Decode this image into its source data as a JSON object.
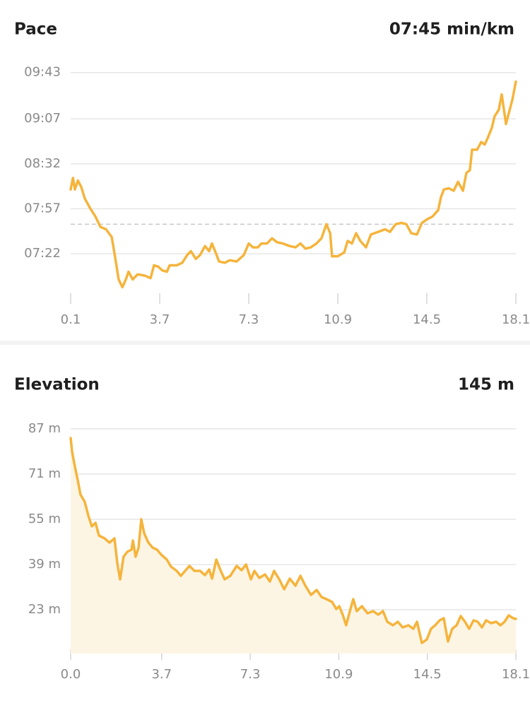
{
  "chart_data": [
    {
      "type": "line",
      "title": "Pace",
      "summary": "07:45 min/km",
      "color": "#f5b43c",
      "x": [
        0.1,
        0.19,
        0.27,
        0.39,
        0.53,
        0.67,
        0.9,
        1.1,
        1.3,
        1.53,
        1.76,
        1.9,
        2.04,
        2.19,
        2.33,
        2.44,
        2.61,
        2.81,
        3.1,
        3.33,
        3.47,
        3.64,
        3.81,
        3.99,
        4.1,
        4.39,
        4.61,
        4.81,
        4.96,
        5.16,
        5.33,
        5.53,
        5.7,
        5.81,
        5.96,
        6.1,
        6.33,
        6.53,
        6.81,
        7.1,
        7.3,
        7.47,
        7.67,
        7.81,
        8.04,
        8.24,
        8.44,
        8.67,
        8.96,
        9.19,
        9.39,
        9.59,
        9.81,
        10.04,
        10.24,
        10.44,
        10.59,
        10.67,
        10.9,
        11.16,
        11.3,
        11.47,
        11.64,
        11.81,
        12.04,
        12.24,
        12.53,
        12.81,
        13.01,
        13.24,
        13.47,
        13.67,
        13.87,
        14.1,
        14.3,
        14.53,
        14.73,
        14.96,
        15.07,
        15.19,
        15.39,
        15.59,
        15.76,
        15.96,
        16.1,
        16.24,
        16.33,
        16.53,
        16.7,
        16.84,
        16.96,
        17.13,
        17.24,
        17.41,
        17.53,
        17.7,
        17.81,
        17.96,
        18.1
      ],
      "values": [
        492,
        501,
        492,
        499,
        494,
        485,
        477,
        471,
        463,
        461,
        455,
        439,
        422,
        416,
        422,
        428,
        422,
        426,
        425,
        423,
        433,
        432,
        429,
        428,
        433,
        433,
        435,
        441,
        444,
        438,
        441,
        448,
        444,
        450,
        443,
        436,
        435,
        437,
        436,
        441,
        450,
        447,
        447,
        450,
        450,
        454,
        451,
        450,
        448,
        447,
        450,
        446,
        447,
        450,
        454,
        465,
        458,
        440,
        440,
        443,
        452,
        450,
        458,
        452,
        447,
        457,
        459,
        461,
        459,
        465,
        466,
        465,
        458,
        457,
        466,
        469,
        471,
        476,
        486,
        492,
        493,
        491,
        498,
        491,
        505,
        507,
        523,
        523,
        529,
        527,
        532,
        540,
        549,
        554,
        566,
        543,
        551,
        562,
        576
      ],
      "ylim": [
        408,
        590
      ],
      "yticks": [
        {
          "value": 442,
          "label": "07:22"
        },
        {
          "value": 477,
          "label": "07:57"
        },
        {
          "value": 512,
          "label": "08:32"
        },
        {
          "value": 547,
          "label": "09:07"
        },
        {
          "value": 583,
          "label": "09:43"
        }
      ],
      "xlim": [
        0.1,
        18.1
      ],
      "xticks": [
        0.1,
        3.7,
        7.3,
        10.9,
        14.5,
        18.1
      ],
      "average": 465,
      "grid": true,
      "area": false
    },
    {
      "type": "line",
      "title": "Elevation",
      "summary": "145 m",
      "color": "#f5b43c",
      "area_color": "#fdf5e4",
      "x": [
        0,
        0.06,
        0.17,
        0.29,
        0.4,
        0.57,
        0.72,
        0.86,
        1.01,
        1.15,
        1.38,
        1.58,
        1.78,
        1.9,
        2.01,
        2.15,
        2.3,
        2.47,
        2.53,
        2.64,
        2.76,
        2.87,
        2.99,
        3.16,
        3.33,
        3.51,
        3.68,
        3.91,
        4.08,
        4.31,
        4.48,
        4.65,
        4.83,
        5.03,
        5.26,
        5.46,
        5.63,
        5.75,
        5.92,
        6.09,
        6.26,
        6.49,
        6.75,
        6.95,
        7.13,
        7.33,
        7.47,
        7.67,
        7.9,
        8.1,
        8.27,
        8.48,
        8.68,
        8.91,
        9.14,
        9.34,
        9.54,
        9.77,
        10,
        10.2,
        10.4,
        10.63,
        10.8,
        10.92,
        11.06,
        11.2,
        11.35,
        11.49,
        11.63,
        11.84,
        12.07,
        12.3,
        12.5,
        12.7,
        12.87,
        13.1,
        13.3,
        13.5,
        13.73,
        13.93,
        14.08,
        14.28,
        14.48,
        14.65,
        14.82,
        15,
        15.17,
        15.34,
        15.51,
        15.69,
        15.86,
        16.03,
        16.2,
        16.38,
        16.55,
        16.72,
        16.89,
        17.09,
        17.3,
        17.47,
        17.64,
        17.81,
        17.99,
        18.1
      ],
      "values": [
        83.75,
        78.75,
        73.75,
        68.75,
        63.75,
        61.25,
        56.25,
        52.5,
        53.75,
        49.25,
        48.25,
        46.75,
        48.25,
        39.25,
        33.75,
        41.75,
        43.5,
        44.25,
        47.5,
        41.75,
        45,
        55,
        50,
        46.75,
        45,
        44.25,
        42.5,
        40.75,
        38.25,
        36.75,
        35,
        36.75,
        38.5,
        36.75,
        36.75,
        35.25,
        37.25,
        34,
        40.75,
        37,
        33.75,
        35,
        38.5,
        37,
        39,
        33.75,
        36.75,
        34.25,
        35.5,
        33,
        36.75,
        33.75,
        30.25,
        34,
        31.5,
        35,
        31.5,
        28.25,
        30,
        27.5,
        26.75,
        25.75,
        23.25,
        24.25,
        21.25,
        17.5,
        22.5,
        26.75,
        22.5,
        24.25,
        21.75,
        22.5,
        21.25,
        22.5,
        18.75,
        17.5,
        18.75,
        16.75,
        17.5,
        16.25,
        18.75,
        11.25,
        12.5,
        16.25,
        17.5,
        19.25,
        20,
        11.75,
        16.25,
        17.5,
        20.75,
        18.75,
        16.25,
        19.25,
        18.75,
        16.75,
        19.25,
        18.25,
        18.75,
        17.5,
        18.75,
        21,
        20,
        19.75
      ],
      "ylim": [
        7.5,
        89.5
      ],
      "yticks": [
        {
          "value": 23,
          "label": "23 m"
        },
        {
          "value": 39,
          "label": "39 m"
        },
        {
          "value": 55,
          "label": "55 m"
        },
        {
          "value": 71,
          "label": "71 m"
        },
        {
          "value": 87,
          "label": "87 m"
        }
      ],
      "xlim": [
        0,
        18.1
      ],
      "xticks": [
        {
          "value": 0,
          "label": "0.0"
        },
        3.7,
        7.3,
        10.9,
        14.5,
        18.1
      ],
      "grid": true,
      "area": true
    }
  ]
}
